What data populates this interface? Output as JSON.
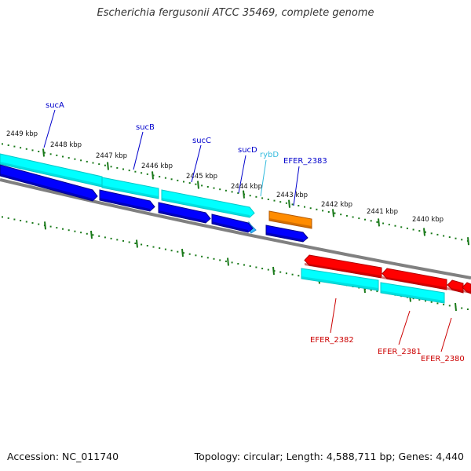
{
  "title": "Escherichia fergusonii ATCC 35469, complete genome",
  "footer": {
    "accession": "Accession: NC_011740",
    "summary": "Topology: circular; Length: 4,588,711 bp; Genes: 4,440"
  },
  "scale": {
    "unit": "kbp",
    "major_ticks": [
      {
        "label": "2449 kbp"
      },
      {
        "label": "2448 kbp"
      },
      {
        "label": "2447 kbp"
      },
      {
        "label": "2446 kbp"
      },
      {
        "label": "2445 kbp"
      },
      {
        "label": "2444 kbp"
      },
      {
        "label": "2443 kbp"
      },
      {
        "label": "2442 kbp"
      },
      {
        "label": "2441 kbp"
      },
      {
        "label": "2440 kbp"
      }
    ]
  },
  "colors": {
    "backbone": "#808080",
    "tick": "#1a7a1a",
    "cds_forward": "#00ffff",
    "cds_forward_dark": "#00c8c8",
    "gene_blue": "#0000ff",
    "gene_blue_dark": "#00008b",
    "gene_red": "#ff0000",
    "gene_red_dark": "#b00000",
    "gene_orange": "#ff8c00",
    "gene_orange_dark": "#b35900",
    "label_blue": "#0000cc",
    "label_cyan": "#33bbdd",
    "label_red": "#cc0000"
  },
  "genes": [
    {
      "name": "sucA",
      "color": "label_blue"
    },
    {
      "name": "sucB",
      "color": "label_blue"
    },
    {
      "name": "sucC",
      "color": "label_blue"
    },
    {
      "name": "sucD",
      "color": "label_blue"
    },
    {
      "name": "rybD",
      "color": "label_cyan"
    },
    {
      "name": "EFER_2383",
      "color": "label_blue"
    },
    {
      "name": "EFER_2382",
      "color": "label_red"
    },
    {
      "name": "EFER_2381",
      "color": "label_red"
    },
    {
      "name": "EFER_2380",
      "color": "label_red"
    }
  ]
}
